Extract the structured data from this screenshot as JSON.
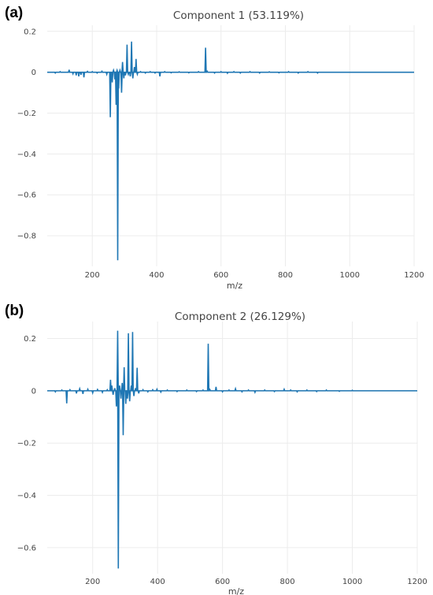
{
  "chart_data": [
    {
      "panel_label": "(a)",
      "type": "line",
      "title": "Component 1 (53.119%)",
      "xlabel": "m/z",
      "ylabel": "",
      "xlim": [
        60,
        1200
      ],
      "ylim": [
        -0.95,
        0.23
      ],
      "x_ticks": [
        200,
        400,
        600,
        800,
        1000,
        1200
      ],
      "y_ticks": [
        0.2,
        0,
        -0.2,
        -0.4,
        -0.6,
        -0.8
      ],
      "y_tick_labels": [
        "0.2",
        "0",
        "−0.2",
        "−0.4",
        "−0.6",
        "−0.8"
      ],
      "grid": true,
      "color": "#1f77b4",
      "peaks": [
        {
          "x": 85,
          "y": -0.004
        },
        {
          "x": 100,
          "y": 0.003
        },
        {
          "x": 128,
          "y": 0.012
        },
        {
          "x": 140,
          "y": -0.008
        },
        {
          "x": 150,
          "y": -0.015
        },
        {
          "x": 158,
          "y": -0.02
        },
        {
          "x": 165,
          "y": -0.012
        },
        {
          "x": 174,
          "y": -0.025
        },
        {
          "x": 185,
          "y": 0.004
        },
        {
          "x": 200,
          "y": 0.003
        },
        {
          "x": 215,
          "y": -0.004
        },
        {
          "x": 230,
          "y": 0.005
        },
        {
          "x": 245,
          "y": -0.01
        },
        {
          "x": 256,
          "y": -0.22
        },
        {
          "x": 262,
          "y": -0.05
        },
        {
          "x": 266,
          "y": 0.01
        },
        {
          "x": 270,
          "y": -0.035
        },
        {
          "x": 274,
          "y": -0.16
        },
        {
          "x": 277,
          "y": 0.01
        },
        {
          "x": 279,
          "y": -0.92
        },
        {
          "x": 282,
          "y": -0.08
        },
        {
          "x": 286,
          "y": 0.01
        },
        {
          "x": 291,
          "y": -0.1
        },
        {
          "x": 294,
          "y": 0.05
        },
        {
          "x": 298,
          "y": -0.03
        },
        {
          "x": 303,
          "y": -0.015
        },
        {
          "x": 308,
          "y": 0.135
        },
        {
          "x": 312,
          "y": -0.01
        },
        {
          "x": 318,
          "y": -0.02
        },
        {
          "x": 322,
          "y": 0.15
        },
        {
          "x": 326,
          "y": -0.03
        },
        {
          "x": 331,
          "y": 0.025
        },
        {
          "x": 336,
          "y": 0.065
        },
        {
          "x": 340,
          "y": -0.01
        },
        {
          "x": 350,
          "y": 0.003
        },
        {
          "x": 365,
          "y": -0.004
        },
        {
          "x": 380,
          "y": 0.003
        },
        {
          "x": 395,
          "y": -0.004
        },
        {
          "x": 410,
          "y": -0.02
        },
        {
          "x": 425,
          "y": 0.003
        },
        {
          "x": 445,
          "y": -0.003
        },
        {
          "x": 470,
          "y": 0.002
        },
        {
          "x": 500,
          "y": -0.003
        },
        {
          "x": 530,
          "y": 0.003
        },
        {
          "x": 552,
          "y": 0.12
        },
        {
          "x": 557,
          "y": 0.005
        },
        {
          "x": 580,
          "y": -0.004
        },
        {
          "x": 600,
          "y": 0.003
        },
        {
          "x": 620,
          "y": -0.005
        },
        {
          "x": 640,
          "y": 0.003
        },
        {
          "x": 660,
          "y": -0.004
        },
        {
          "x": 690,
          "y": 0.003
        },
        {
          "x": 720,
          "y": -0.004
        },
        {
          "x": 750,
          "y": 0.002
        },
        {
          "x": 780,
          "y": -0.003
        },
        {
          "x": 810,
          "y": 0.003
        },
        {
          "x": 840,
          "y": -0.004
        },
        {
          "x": 870,
          "y": 0.003
        },
        {
          "x": 900,
          "y": -0.004
        }
      ]
    },
    {
      "panel_label": "(b)",
      "type": "line",
      "title": "Component 2 (26.129%)",
      "xlabel": "m/z",
      "ylabel": "",
      "xlim": [
        60,
        1200
      ],
      "ylim": [
        -0.7,
        0.265
      ],
      "x_ticks": [
        200,
        400,
        600,
        800,
        1000,
        1200
      ],
      "y_ticks": [
        0.2,
        0,
        -0.2,
        -0.4,
        -0.6
      ],
      "y_tick_labels": [
        "0.2",
        "0",
        "−0.2",
        "−0.4",
        "−0.6"
      ],
      "grid": true,
      "color": "#1f77b4",
      "peaks": [
        {
          "x": 85,
          "y": -0.004
        },
        {
          "x": 105,
          "y": 0.003
        },
        {
          "x": 120,
          "y": -0.048
        },
        {
          "x": 130,
          "y": 0.004
        },
        {
          "x": 150,
          "y": -0.01
        },
        {
          "x": 160,
          "y": 0.008
        },
        {
          "x": 170,
          "y": -0.012
        },
        {
          "x": 185,
          "y": 0.006
        },
        {
          "x": 200,
          "y": -0.008
        },
        {
          "x": 215,
          "y": 0.005
        },
        {
          "x": 230,
          "y": -0.006
        },
        {
          "x": 245,
          "y": 0.004
        },
        {
          "x": 255,
          "y": 0.042
        },
        {
          "x": 259,
          "y": 0.02
        },
        {
          "x": 263,
          "y": -0.015
        },
        {
          "x": 268,
          "y": 0.01
        },
        {
          "x": 273,
          "y": -0.06
        },
        {
          "x": 277,
          "y": 0.23
        },
        {
          "x": 279,
          "y": -0.68
        },
        {
          "x": 283,
          "y": 0.02
        },
        {
          "x": 287,
          "y": -0.03
        },
        {
          "x": 291,
          "y": 0.03
        },
        {
          "x": 294,
          "y": -0.17
        },
        {
          "x": 297,
          "y": 0.09
        },
        {
          "x": 302,
          "y": -0.05
        },
        {
          "x": 307,
          "y": -0.03
        },
        {
          "x": 310,
          "y": 0.22
        },
        {
          "x": 314,
          "y": -0.04
        },
        {
          "x": 319,
          "y": 0.02
        },
        {
          "x": 323,
          "y": 0.225
        },
        {
          "x": 327,
          "y": -0.02
        },
        {
          "x": 332,
          "y": 0.01
        },
        {
          "x": 337,
          "y": 0.088
        },
        {
          "x": 342,
          "y": -0.01
        },
        {
          "x": 355,
          "y": 0.004
        },
        {
          "x": 370,
          "y": -0.004
        },
        {
          "x": 385,
          "y": 0.004
        },
        {
          "x": 398,
          "y": 0.006
        },
        {
          "x": 410,
          "y": -0.005
        },
        {
          "x": 430,
          "y": 0.003
        },
        {
          "x": 460,
          "y": -0.003
        },
        {
          "x": 490,
          "y": 0.003
        },
        {
          "x": 520,
          "y": -0.003
        },
        {
          "x": 540,
          "y": 0.003
        },
        {
          "x": 556,
          "y": 0.18
        },
        {
          "x": 561,
          "y": 0.005
        },
        {
          "x": 580,
          "y": 0.015
        },
        {
          "x": 600,
          "y": -0.004
        },
        {
          "x": 620,
          "y": 0.003
        },
        {
          "x": 640,
          "y": 0.008
        },
        {
          "x": 660,
          "y": -0.004
        },
        {
          "x": 680,
          "y": 0.003
        },
        {
          "x": 700,
          "y": -0.006
        },
        {
          "x": 730,
          "y": 0.003
        },
        {
          "x": 760,
          "y": -0.003
        },
        {
          "x": 790,
          "y": 0.006
        },
        {
          "x": 810,
          "y": 0.003
        },
        {
          "x": 830,
          "y": -0.004
        },
        {
          "x": 860,
          "y": 0.003
        },
        {
          "x": 890,
          "y": -0.003
        },
        {
          "x": 920,
          "y": 0.003
        },
        {
          "x": 960,
          "y": -0.002
        },
        {
          "x": 1000,
          "y": 0.002
        }
      ]
    }
  ]
}
